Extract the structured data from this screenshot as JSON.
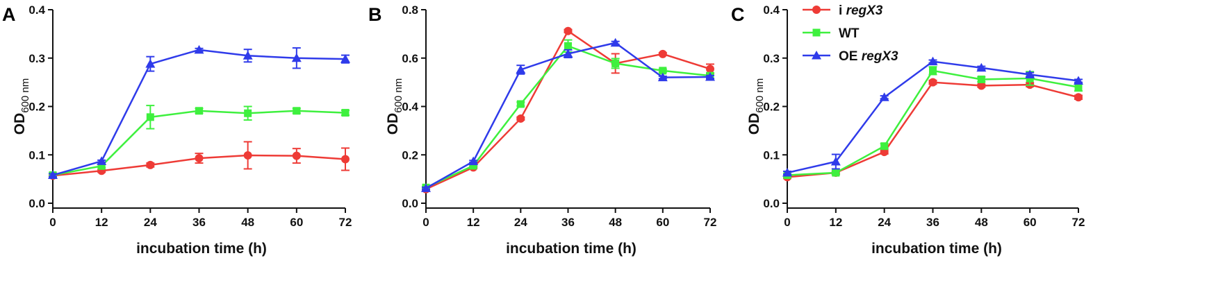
{
  "chart_data": [
    {
      "type": "line",
      "panel_label": "A",
      "xlabel": "incubation time (h)",
      "ylabel_main": "OD",
      "ylabel_sub": "600 nm",
      "x": [
        0,
        12,
        24,
        36,
        48,
        60,
        72
      ],
      "xticks": [
        "0",
        "12",
        "24",
        "36",
        "48",
        "60",
        "72"
      ],
      "ylim": [
        0,
        0.4
      ],
      "yticks": [
        "0.0",
        "0.1",
        "0.2",
        "0.3",
        "0.4"
      ],
      "series": [
        {
          "name": "i regX3",
          "color": "#ee3b36",
          "marker": "circle",
          "values": [
            0.057,
            0.067,
            0.079,
            0.093,
            0.099,
            0.098,
            0.091
          ],
          "errors": [
            0.005,
            0.003,
            0.004,
            0.01,
            0.028,
            0.015,
            0.023
          ]
        },
        {
          "name": "WT",
          "color": "#3ef03e",
          "marker": "square",
          "values": [
            0.058,
            0.077,
            0.178,
            0.191,
            0.186,
            0.191,
            0.187
          ],
          "errors": [
            0.004,
            0.003,
            0.024,
            0.005,
            0.014,
            0.005,
            0.005
          ]
        },
        {
          "name": "OE regX3",
          "color": "#2f3bea",
          "marker": "triangle",
          "values": [
            0.058,
            0.087,
            0.288,
            0.317,
            0.305,
            0.3,
            0.298
          ],
          "errors": [
            0.003,
            0.002,
            0.015,
            0.003,
            0.013,
            0.021,
            0.008
          ]
        }
      ]
    },
    {
      "type": "line",
      "panel_label": "B",
      "xlabel": "incubation time (h)",
      "ylabel_main": "OD",
      "ylabel_sub": "600 nm",
      "x": [
        0,
        12,
        24,
        36,
        48,
        60,
        72
      ],
      "xticks": [
        "0",
        "12",
        "24",
        "36",
        "48",
        "60",
        "72"
      ],
      "ylim": [
        0,
        0.8
      ],
      "yticks": [
        "0.0",
        "0.2",
        "0.4",
        "0.6",
        "0.8"
      ],
      "series": [
        {
          "name": "i regX3",
          "color": "#ee3b36",
          "marker": "circle",
          "values": [
            0.058,
            0.148,
            0.35,
            0.712,
            0.578,
            0.617,
            0.555
          ],
          "errors": [
            0.004,
            0.004,
            0.006,
            0.006,
            0.04,
            0.005,
            0.02
          ]
        },
        {
          "name": "WT",
          "color": "#3ef03e",
          "marker": "square",
          "values": [
            0.065,
            0.155,
            0.41,
            0.65,
            0.578,
            0.548,
            0.527
          ],
          "errors": [
            0.004,
            0.004,
            0.008,
            0.025,
            0.02,
            0.006,
            0.012
          ]
        },
        {
          "name": "OE regX3",
          "color": "#2f3bea",
          "marker": "triangle",
          "values": [
            0.062,
            0.173,
            0.552,
            0.618,
            0.663,
            0.52,
            0.522
          ],
          "errors": [
            0.004,
            0.004,
            0.018,
            0.016,
            0.006,
            0.005,
            0.006
          ]
        }
      ]
    },
    {
      "type": "line",
      "panel_label": "C",
      "xlabel": "incubation time (h)",
      "ylabel_main": "OD",
      "ylabel_sub": "600 nm",
      "x": [
        0,
        12,
        24,
        36,
        48,
        60,
        72
      ],
      "xticks": [
        "0",
        "12",
        "24",
        "36",
        "48",
        "60",
        "72"
      ],
      "ylim": [
        0,
        0.4
      ],
      "yticks": [
        "0.0",
        "0.1",
        "0.2",
        "0.3",
        "0.4"
      ],
      "legend": {
        "position": "top-left"
      },
      "series": [
        {
          "name": "i regX3",
          "color": "#ee3b36",
          "marker": "circle",
          "values": [
            0.054,
            0.063,
            0.106,
            0.25,
            0.243,
            0.245,
            0.219
          ],
          "errors": [
            0.003,
            0.003,
            0.004,
            0.004,
            0.003,
            0.004,
            0.004
          ]
        },
        {
          "name": "WT",
          "color": "#3ef03e",
          "marker": "square",
          "values": [
            0.058,
            0.063,
            0.118,
            0.274,
            0.256,
            0.258,
            0.24
          ],
          "errors": [
            0.003,
            0.004,
            0.005,
            0.008,
            0.005,
            0.014,
            0.008
          ]
        },
        {
          "name": "OE regX3",
          "color": "#2f3bea",
          "marker": "triangle",
          "values": [
            0.063,
            0.086,
            0.219,
            0.293,
            0.28,
            0.266,
            0.253
          ],
          "errors": [
            0.003,
            0.015,
            0.003,
            0.003,
            0.003,
            0.004,
            0.003
          ]
        }
      ]
    }
  ],
  "legend": {
    "entries": [
      {
        "prefix": "i ",
        "italic": "regX3",
        "suffix": ""
      },
      {
        "prefix": "WT",
        "italic": "",
        "suffix": ""
      },
      {
        "prefix": "OE ",
        "italic": "regX3",
        "suffix": ""
      }
    ]
  }
}
